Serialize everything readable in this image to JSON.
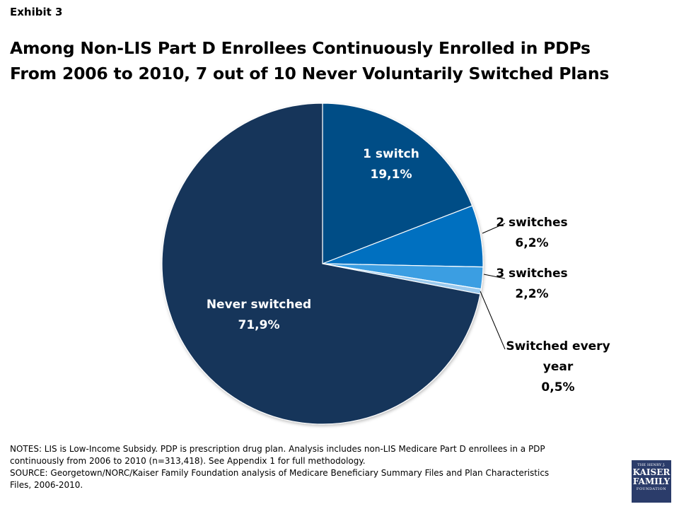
{
  "header": {
    "exhibit": "Exhibit 3",
    "title_line1": "Among Non-LIS Part D Enrollees Continuously Enrolled in PDPs",
    "title_line2": "From 2006 to 2010, 7 out of 10 Never Voluntarily Switched Plans"
  },
  "chart_data": {
    "type": "pie",
    "title": "Among Non-LIS Part D Enrollees Continuously Enrolled in PDPs From 2006 to 2010, 7 out of 10 Never Voluntarily Switched Plans",
    "start_angle": "12 o'clock",
    "direction": "clockwise",
    "slices": [
      {
        "label_lines": [
          "1 switch"
        ],
        "value": 19.1,
        "value_label": "19,1%",
        "color": "#044e86"
      },
      {
        "label_lines": [
          "2 switches"
        ],
        "value": 6.2,
        "value_label": "6,2%",
        "color": "#0070c0"
      },
      {
        "label_lines": [
          "3 switches"
        ],
        "value": 2.2,
        "value_label": "2,2%",
        "color": "#3a9ee2"
      },
      {
        "label_lines": [
          "Switched every",
          "year"
        ],
        "value": 0.5,
        "value_label": "0,5%",
        "color": "#9bcaee"
      },
      {
        "label_lines": [
          "Never switched"
        ],
        "value": 71.9,
        "value_label": "71,9%",
        "color": "#13345a"
      }
    ]
  },
  "notes": {
    "line1": "NOTES: LIS is Low-Income Subsidy. PDP is prescription drug plan. Analysis includes non-LIS Medicare Part D enrollees in a PDP",
    "line2": "continuously from 2006 to 2010 (n=313,418). See Appendix 1 for full methodology.",
    "line3": "SOURCE: Georgetown/NORC/Kaiser Family Foundation analysis of Medicare Beneficiary Summary Files and Plan Characteristics",
    "line4": "Files, 2006-2010."
  },
  "logo": {
    "line1": "THE HENRY J.",
    "line2a": "KAISER",
    "line2b": "FAMILY",
    "line3": "FOUNDATION",
    "color": "#2b3c6a"
  }
}
